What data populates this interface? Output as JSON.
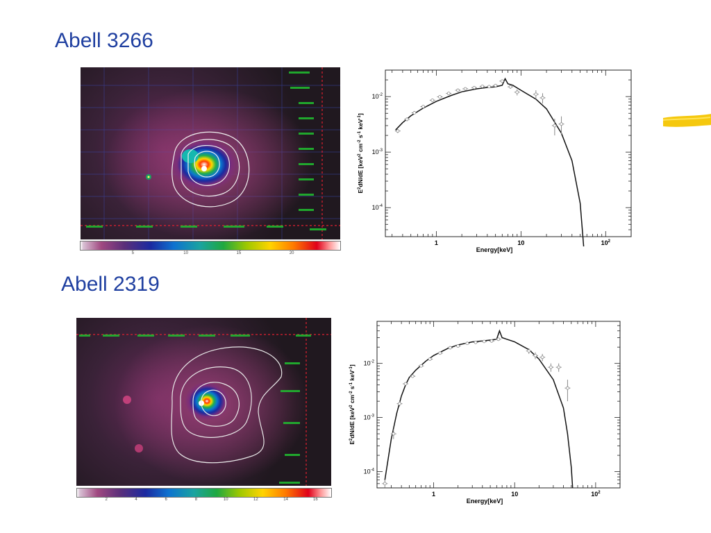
{
  "slide": {
    "panels": [
      {
        "title": "Abell 3266",
        "colorbar_ticks": [
          "5",
          "10",
          "15",
          "20"
        ],
        "colorbar_max": 24
      },
      {
        "title": "Abell 2319",
        "colorbar_ticks": [
          "2",
          "4",
          "6",
          "8",
          "10",
          "12",
          "14",
          "16"
        ],
        "colorbar_max": 17
      }
    ]
  },
  "chart_data": [
    {
      "type": "line",
      "title": "Abell 3266",
      "xlabel": "Energy[keV]",
      "ylabel": "E2dN/dE [keV2 cm-2 s-1 keV-1]",
      "xscale": "log",
      "yscale": "log",
      "xlim": [
        0.25,
        200
      ],
      "ylim": [
        3e-05,
        0.03
      ],
      "x_ticks": [
        "1",
        "10",
        "10^2"
      ],
      "y_ticks": [
        "10^-2",
        "10^-3",
        "10^-4"
      ],
      "series": [
        {
          "style": "model-line",
          "x": [
            0.33,
            0.4,
            0.5,
            0.7,
            1.0,
            1.5,
            2.0,
            3.0,
            4.0,
            5.0,
            6.0,
            6.5,
            7.0,
            8.0,
            10,
            15,
            20,
            30,
            40,
            50,
            55
          ],
          "y": [
            0.0025,
            0.0034,
            0.0045,
            0.0062,
            0.0082,
            0.0105,
            0.0122,
            0.0138,
            0.0146,
            0.015,
            0.016,
            0.021,
            0.017,
            0.016,
            0.013,
            0.009,
            0.006,
            0.0022,
            0.0007,
            0.00012,
            2e-05
          ]
        },
        {
          "style": "data-points",
          "x": [
            0.35,
            0.45,
            0.55,
            0.7,
            0.9,
            1.1,
            1.4,
            1.8,
            2.2,
            2.8,
            3.5,
            4.2,
            5.0,
            6.0,
            7.5,
            9.0,
            15,
            18,
            25,
            30
          ],
          "y": [
            0.0024,
            0.0039,
            0.0051,
            0.0066,
            0.0086,
            0.0099,
            0.0114,
            0.013,
            0.0138,
            0.0145,
            0.0153,
            0.0151,
            0.0158,
            0.019,
            0.015,
            0.012,
            0.011,
            0.0095,
            0.003,
            0.0032
          ],
          "yerr": [
            0.0002,
            0.0003,
            0.0003,
            0.0004,
            0.0004,
            0.0005,
            0.0005,
            0.0006,
            0.0006,
            0.0007,
            0.0007,
            0.0007,
            0.0008,
            0.001,
            0.0012,
            0.0015,
            0.002,
            0.002,
            0.001,
            0.0012
          ]
        }
      ]
    },
    {
      "type": "line",
      "title": "Abell 2319",
      "xlabel": "Energy[keV]",
      "ylabel": "E2dN/dE [keV2 cm-2 s-1 keV-1]",
      "xscale": "log",
      "yscale": "log",
      "xlim": [
        0.2,
        200
      ],
      "ylim": [
        5e-05,
        0.06
      ],
      "x_ticks": [
        "1",
        "10",
        "10^2"
      ],
      "y_ticks": [
        "10^-2",
        "10^-3",
        "10^-4"
      ],
      "series": [
        {
          "style": "model-line",
          "x": [
            0.25,
            0.3,
            0.35,
            0.4,
            0.45,
            0.5,
            0.6,
            0.8,
            1.0,
            1.5,
            2.0,
            3.0,
            4.0,
            5.0,
            6.0,
            6.5,
            7.0,
            8.0,
            10,
            15,
            20,
            30,
            40,
            45,
            50,
            52
          ],
          "y": [
            7e-05,
            0.0004,
            0.0012,
            0.0025,
            0.004,
            0.0055,
            0.0075,
            0.011,
            0.014,
            0.019,
            0.022,
            0.025,
            0.026,
            0.027,
            0.028,
            0.04,
            0.03,
            0.028,
            0.025,
            0.018,
            0.012,
            0.005,
            0.0015,
            0.0005,
            0.00012,
            5e-05
          ]
        },
        {
          "style": "data-points",
          "x": [
            0.25,
            0.32,
            0.38,
            0.45,
            0.55,
            0.7,
            0.9,
            1.2,
            1.6,
            2.0,
            2.6,
            3.3,
            4.2,
            5.2,
            6.3,
            15,
            18,
            22,
            28,
            35,
            45
          ],
          "y": [
            6e-05,
            0.0005,
            0.0018,
            0.0042,
            0.0058,
            0.009,
            0.012,
            0.0155,
            0.0195,
            0.021,
            0.0235,
            0.0245,
            0.0255,
            0.026,
            0.028,
            0.017,
            0.014,
            0.013,
            0.0085,
            0.0085,
            0.0035
          ],
          "yerr": [
            1e-05,
            0.0001,
            0.0002,
            0.0003,
            0.0003,
            0.0004,
            0.0005,
            0.0006,
            0.0007,
            0.0008,
            0.0008,
            0.0009,
            0.0009,
            0.001,
            0.001,
            0.002,
            0.002,
            0.002,
            0.0015,
            0.0015,
            0.0015
          ]
        }
      ]
    }
  ]
}
